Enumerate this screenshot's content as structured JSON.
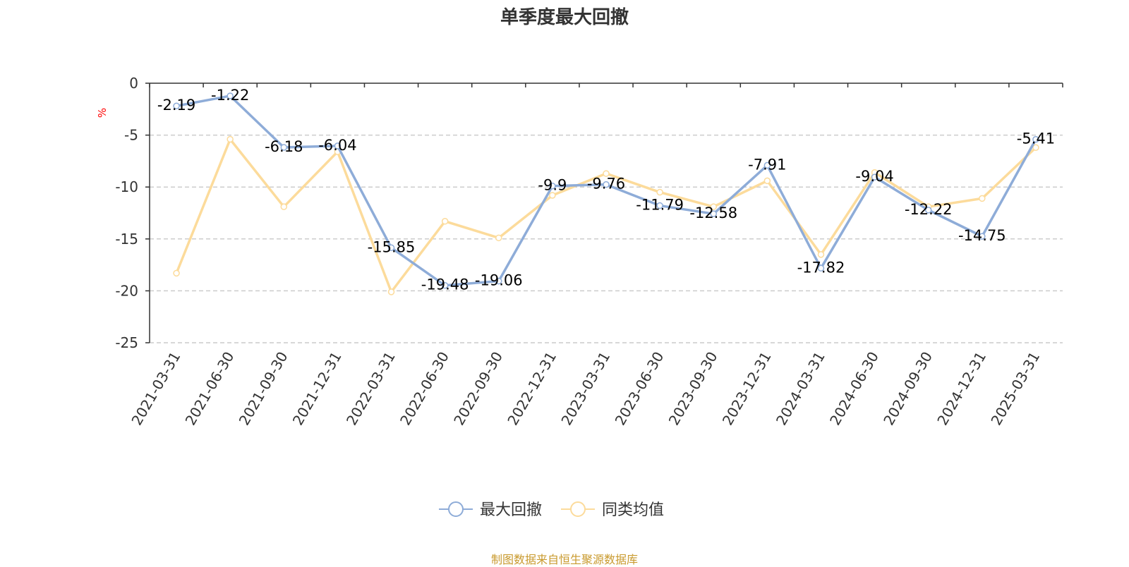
{
  "title": "单季度最大回撤",
  "source_note": "制图数据来自恒生聚源数据库",
  "chart_data": {
    "type": "line",
    "title": "单季度最大回撤",
    "ylabel": "%",
    "xlabel": "",
    "ylim": [
      -25,
      0
    ],
    "yticks": [
      0,
      -5,
      -10,
      -15,
      -20,
      -25
    ],
    "grid": true,
    "legend_position": "bottom",
    "categories": [
      "2021-03-31",
      "2021-06-30",
      "2021-09-30",
      "2021-12-31",
      "2022-03-31",
      "2022-06-30",
      "2022-09-30",
      "2022-12-31",
      "2023-03-31",
      "2023-06-30",
      "2023-09-30",
      "2023-12-31",
      "2024-03-31",
      "2024-06-30",
      "2024-09-30",
      "2024-12-31",
      "2025-03-31"
    ],
    "series": [
      {
        "name": "最大回撤",
        "color": "#8eacd8",
        "values": [
          -2.19,
          -1.22,
          -6.18,
          -6.04,
          -15.85,
          -19.48,
          -19.06,
          -9.9,
          -9.76,
          -11.79,
          -12.58,
          -7.91,
          -17.82,
          -9.04,
          -12.22,
          -14.75,
          -5.41
        ],
        "labels": [
          "-2.19",
          "-1.22",
          "-6.18",
          "-6.04",
          "-15.85",
          "-19.48",
          "-19.06",
          "-9.9",
          "-9.76",
          "-11.79",
          "-12.58",
          "-7.91",
          "-17.82",
          "-9.04",
          "-12.22",
          "-14.75",
          "-5.41"
        ]
      },
      {
        "name": "同类均值",
        "color": "#fcdb9b",
        "values": [
          -18.3,
          -5.4,
          -11.9,
          -6.6,
          -20.1,
          -13.3,
          -14.9,
          -10.8,
          -8.7,
          -10.5,
          -11.9,
          -9.4,
          -16.5,
          -8.6,
          -11.9,
          -11.1,
          -6.2
        ]
      }
    ]
  },
  "colors": {
    "axis": "#333333",
    "grid": "#cccccc",
    "ylabel": "#ff0000",
    "source": "#c99a2e"
  }
}
